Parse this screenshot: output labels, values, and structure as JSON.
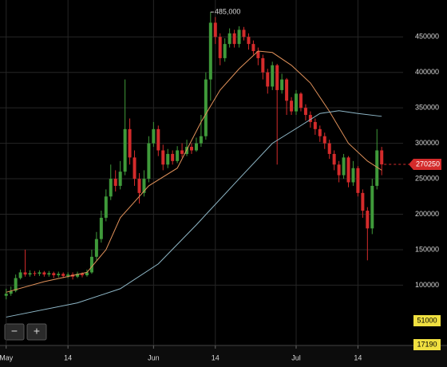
{
  "chart_data": {
    "type": "candlestick",
    "x": [
      0,
      1,
      2,
      3,
      4,
      5,
      6,
      7,
      8,
      9,
      10,
      11,
      12,
      13,
      14,
      15,
      16,
      17,
      18,
      19,
      20,
      21,
      22,
      23,
      24,
      25,
      26,
      27,
      28,
      29,
      30,
      31,
      32,
      33,
      34,
      35,
      36,
      37,
      38,
      39,
      40,
      41,
      42,
      43,
      44,
      45,
      46,
      47,
      48,
      49,
      50,
      51,
      52,
      53,
      54,
      55,
      56,
      57,
      58,
      59,
      60,
      61,
      62,
      63,
      64,
      65,
      66,
      67,
      68,
      69,
      70,
      71,
      72,
      73,
      74,
      75,
      76,
      77,
      78,
      79
    ],
    "open": [
      85000,
      88000,
      92000,
      110000,
      118000,
      115000,
      117000,
      116000,
      118000,
      115000,
      117000,
      114000,
      116000,
      113000,
      115000,
      112000,
      116000,
      114000,
      118000,
      140000,
      165000,
      195000,
      225000,
      250000,
      240000,
      260000,
      320000,
      280000,
      250000,
      230000,
      250000,
      300000,
      320000,
      290000,
      270000,
      285000,
      275000,
      290000,
      285000,
      295000,
      290000,
      300000,
      310000,
      390000,
      470000,
      450000,
      420000,
      440000,
      455000,
      440000,
      460000,
      450000,
      440000,
      430000,
      420000,
      400000,
      380000,
      410000,
      375000,
      390000,
      360000,
      345000,
      370000,
      350000,
      340000,
      330000,
      320000,
      310000,
      300000,
      285000,
      270000,
      255000,
      280000,
      245000,
      265000,
      230000,
      205000,
      180000,
      240000,
      290000
    ],
    "high": [
      95000,
      98000,
      115000,
      122000,
      150000,
      121000,
      120000,
      121000,
      120000,
      120000,
      119000,
      119000,
      118000,
      118000,
      118000,
      119000,
      118000,
      122000,
      150000,
      175000,
      205000,
      235000,
      270000,
      262000,
      275000,
      390000,
      335000,
      290000,
      258000,
      262000,
      310000,
      330000,
      325000,
      298000,
      292000,
      290000,
      296000,
      300000,
      305000,
      300000,
      308000,
      340000,
      400000,
      485000,
      478000,
      455000,
      448000,
      462000,
      460000,
      465000,
      464000,
      455000,
      445000,
      435000,
      425000,
      405000,
      415000,
      412000,
      398000,
      392000,
      365000,
      375000,
      372000,
      355000,
      345000,
      335000,
      325000,
      315000,
      305000,
      290000,
      275000,
      285000,
      282000,
      275000,
      268000,
      235000,
      210000,
      250000,
      320000,
      295000
    ],
    "low": [
      80000,
      85000,
      90000,
      108000,
      112000,
      112000,
      113000,
      113000,
      112000,
      112000,
      110000,
      111000,
      110000,
      110000,
      108000,
      110000,
      111000,
      112000,
      116000,
      135000,
      160000,
      190000,
      220000,
      232000,
      235000,
      255000,
      270000,
      240000,
      215000,
      225000,
      245000,
      295000,
      282000,
      262000,
      265000,
      270000,
      272000,
      280000,
      282000,
      285000,
      288000,
      295000,
      305000,
      360000,
      440000,
      410000,
      415000,
      435000,
      435000,
      435000,
      445000,
      432000,
      425000,
      410000,
      390000,
      370000,
      375000,
      270000,
      370000,
      340000,
      340000,
      340000,
      345000,
      332000,
      322000,
      312000,
      302000,
      292000,
      278000,
      262000,
      245000,
      250000,
      238000,
      240000,
      225000,
      195000,
      135000,
      172000,
      235000,
      255000
    ],
    "close": [
      88000,
      92000,
      110000,
      118000,
      115000,
      117000,
      116000,
      118000,
      115000,
      117000,
      114000,
      116000,
      113000,
      115000,
      112000,
      116000,
      114000,
      118000,
      140000,
      165000,
      195000,
      225000,
      250000,
      240000,
      260000,
      320000,
      280000,
      250000,
      230000,
      250000,
      300000,
      320000,
      290000,
      270000,
      285000,
      275000,
      290000,
      285000,
      295000,
      290000,
      300000,
      310000,
      390000,
      470000,
      450000,
      420000,
      440000,
      455000,
      440000,
      460000,
      450000,
      440000,
      430000,
      420000,
      400000,
      380000,
      410000,
      375000,
      390000,
      360000,
      345000,
      370000,
      350000,
      340000,
      330000,
      320000,
      310000,
      300000,
      285000,
      270000,
      255000,
      280000,
      245000,
      265000,
      230000,
      205000,
      180000,
      240000,
      290000,
      270250
    ],
    "up_color": "#3f9a3a",
    "down_color": "#d42b2b",
    "series": [
      {
        "color": "#e0915a",
        "x": [
          0,
          8,
          17,
          21,
          24,
          30,
          36,
          41,
          45,
          49,
          53,
          56,
          60,
          64,
          68,
          72,
          76,
          79
        ],
        "values": [
          90000,
          105000,
          118000,
          150000,
          195000,
          240000,
          265000,
          330000,
          375000,
          405000,
          430000,
          428000,
          410000,
          385000,
          345000,
          300000,
          275000,
          262000
        ]
      },
      {
        "color": "#8fb8c8",
        "x": [
          0,
          15,
          24,
          32,
          40,
          49,
          56,
          62,
          66,
          70,
          74,
          79
        ],
        "values": [
          55000,
          75000,
          95000,
          130000,
          185000,
          250000,
          300000,
          325000,
          342000,
          346000,
          342000,
          338000
        ]
      }
    ],
    "max_label": "485,000",
    "indicator_tags": [
      "51000",
      "17190"
    ],
    "zoom_buttons": [
      "−",
      "+"
    ],
    "xlim": [
      -1.3,
      83.5
    ],
    "ylim": [
      15000,
      502000
    ],
    "xticks": [
      {
        "value": 0,
        "label": "May"
      },
      {
        "value": 13,
        "label": "14"
      },
      {
        "value": 31,
        "label": "Jun"
      },
      {
        "value": 44,
        "label": "14"
      },
      {
        "value": 61,
        "label": "Jul"
      },
      {
        "value": 74,
        "label": "14"
      }
    ],
    "yticks": [
      100000,
      150000,
      200000,
      250000,
      300000,
      350000,
      400000,
      450000
    ],
    "grid": true
  }
}
